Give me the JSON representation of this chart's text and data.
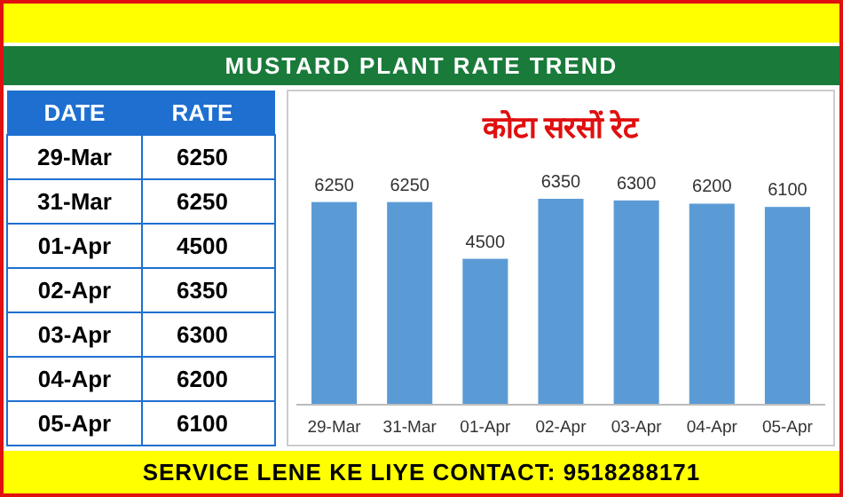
{
  "chart_data": [
    {
      "type": "other",
      "title": "MUSTARD PLANT RATE TREND",
      "categories": [
        "29-Mar",
        "31-Mar",
        "01-Apr",
        "02-Apr",
        "03-Apr",
        "04-Apr",
        "05-Apr"
      ],
      "values": [
        6250,
        6250,
        4500,
        6350,
        6300,
        6200,
        6100
      ],
      "data_labels": true,
      "annotations": [
        "DATE",
        "RATE",
        "SERVICE LENE KE LIYE CONTACT: 9518288171"
      ]
    },
    {
      "type": "bar",
      "title": "कोटा सरसों रेट",
      "categories": [
        "29-Mar",
        "31-Mar",
        "01-Apr",
        "02-Apr",
        "03-Apr",
        "04-Apr",
        "05-Apr"
      ],
      "values": [
        6250,
        6250,
        4500,
        6350,
        6300,
        6200,
        6100
      ],
      "color": "#5b9bd5",
      "data_labels": true
    }
  ]
}
